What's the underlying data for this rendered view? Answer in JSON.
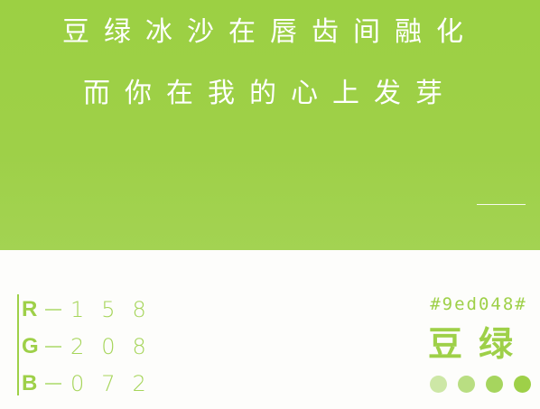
{
  "poem": {
    "line1": "豆绿冰沙在唇齿间融化",
    "line2": "而你在我的心上发芽"
  },
  "rgb": [
    {
      "letter": "R",
      "value": "158"
    },
    {
      "letter": "G",
      "value": "208"
    },
    {
      "letter": "B",
      "value": "072"
    }
  ],
  "hex": "#9ed048#",
  "color_name": "豆绿",
  "colors": {
    "accent": "#9ed048",
    "banner": "#9ed048",
    "swatches": [
      "#cde7a6",
      "#b9de82",
      "#a6d55e",
      "#9ed048"
    ]
  }
}
